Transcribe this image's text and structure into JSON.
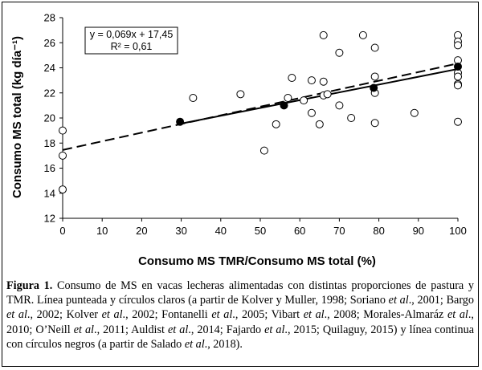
{
  "chart_data": {
    "type": "scatter",
    "xlabel": "Consumo MS TMR/Consumo MS total (%)",
    "ylabel": "Consumo MS total (kg día⁻¹)",
    "xlim": [
      0,
      100
    ],
    "ylim": [
      12,
      28
    ],
    "x_ticks": [
      "0",
      "10",
      "20",
      "30",
      "40",
      "50",
      "60",
      "70",
      "80",
      "90",
      "100"
    ],
    "y_ticks": [
      "12",
      "14",
      "16",
      "18",
      "20",
      "22",
      "24",
      "26",
      "28"
    ],
    "grid": false,
    "annotation": {
      "equation": "y = 0,069x + 17,45",
      "r2": "R² = 0,61"
    },
    "series": [
      {
        "marker": "open-circle",
        "line_style": "dashed",
        "trend": {
          "slope": 0.069,
          "intercept": 17.45
        },
        "points": [
          [
            0,
            19.0
          ],
          [
            0,
            17.0
          ],
          [
            0,
            14.3
          ],
          [
            33,
            21.6
          ],
          [
            45,
            21.9
          ],
          [
            51,
            17.4
          ],
          [
            54,
            19.5
          ],
          [
            57,
            21.6
          ],
          [
            58,
            23.2
          ],
          [
            61,
            21.4
          ],
          [
            63,
            23.0
          ],
          [
            63,
            20.4
          ],
          [
            65,
            19.5
          ],
          [
            66,
            26.6
          ],
          [
            66,
            22.9
          ],
          [
            66,
            21.8
          ],
          [
            67,
            21.9
          ],
          [
            70,
            25.2
          ],
          [
            70,
            21.0
          ],
          [
            73,
            20.0
          ],
          [
            76,
            26.6
          ],
          [
            79,
            25.6
          ],
          [
            79,
            23.3
          ],
          [
            79,
            22.0
          ],
          [
            79,
            19.6
          ],
          [
            89,
            20.4
          ],
          [
            100,
            26.6
          ],
          [
            100,
            26.1
          ],
          [
            100,
            25.8
          ],
          [
            100,
            24.6
          ],
          [
            100,
            23.6
          ],
          [
            100,
            23.3
          ],
          [
            100,
            22.7
          ],
          [
            100,
            22.6
          ],
          [
            100,
            19.7
          ]
        ]
      },
      {
        "marker": "filled-circle",
        "line_style": "solid",
        "points": [
          [
            29.7,
            19.7
          ],
          [
            56,
            21.0
          ],
          [
            78.7,
            22.4
          ],
          [
            100,
            24.1
          ]
        ]
      }
    ]
  },
  "caption": {
    "label": "Figura 1.",
    "segments": [
      {
        "t": " Consumo de MS en vacas lecheras alimentadas con distintas proporciones de pastura y TMR. Línea punteada y círculos claros (a partir de Kolver y Muller, 1998; Soriano "
      },
      {
        "t": "et al",
        "i": true
      },
      {
        "t": "., 2001; Bargo "
      },
      {
        "t": "et al",
        "i": true
      },
      {
        "t": "., 2002; Kolver "
      },
      {
        "t": "et al",
        "i": true
      },
      {
        "t": "., 2002; Fontanelli "
      },
      {
        "t": "et al",
        "i": true
      },
      {
        "t": "., 2005; Vibart "
      },
      {
        "t": "et al",
        "i": true
      },
      {
        "t": "., 2008; Morales-Almaráz "
      },
      {
        "t": "et al",
        "i": true
      },
      {
        "t": "., 2010; O’Neill "
      },
      {
        "t": "et al",
        "i": true
      },
      {
        "t": "., 2011; Auldist "
      },
      {
        "t": "et al",
        "i": true
      },
      {
        "t": "., 2014; Fajardo "
      },
      {
        "t": "et al",
        "i": true
      },
      {
        "t": "., 2015; Quilaguy, 2015) y línea continua con círculos negros (a partir de Salado "
      },
      {
        "t": "et al",
        "i": true
      },
      {
        "t": "., 2018)."
      }
    ]
  }
}
